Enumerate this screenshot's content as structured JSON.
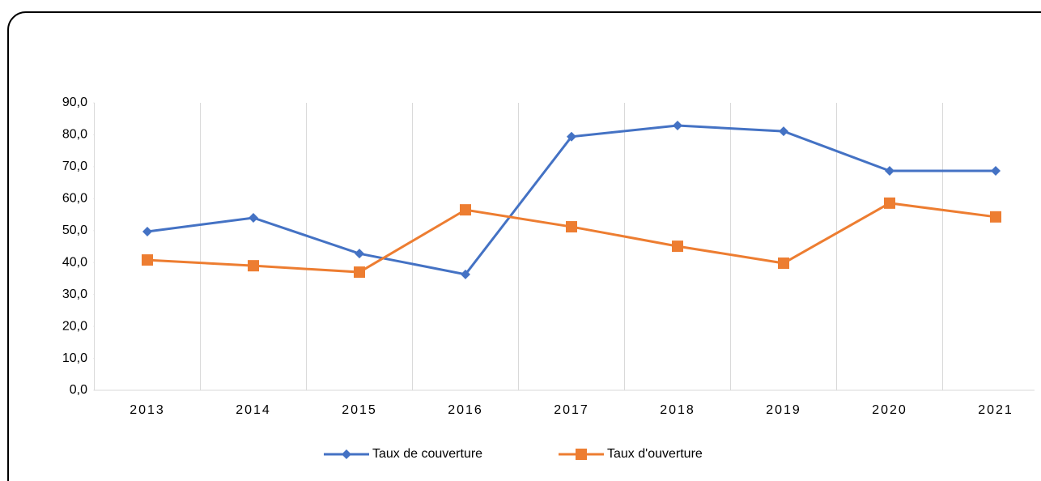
{
  "chart_data": {
    "type": "line",
    "categories": [
      "2013",
      "2014",
      "2015",
      "2016",
      "2017",
      "2018",
      "2019",
      "2020",
      "2021"
    ],
    "series": [
      {
        "name": "Taux de couverture",
        "color": "#4472c4",
        "marker": "diamond",
        "values": [
          49.7,
          54.0,
          42.8,
          36.3,
          79.4,
          82.9,
          81.1,
          68.7,
          68.7
        ]
      },
      {
        "name": "Taux d'ouverture",
        "color": "#ed7d31",
        "marker": "square",
        "values": [
          40.8,
          39.0,
          37.0,
          56.5,
          51.2,
          45.1,
          39.8,
          58.6,
          54.3
        ]
      }
    ],
    "ylim": [
      0,
      90
    ],
    "yticks": [
      {
        "value": 0,
        "label": "0,0"
      },
      {
        "value": 10,
        "label": "10,0"
      },
      {
        "value": 20,
        "label": "20,0"
      },
      {
        "value": 30,
        "label": "30,0"
      },
      {
        "value": 40,
        "label": "40,0"
      },
      {
        "value": 50,
        "label": "50,0"
      },
      {
        "value": 60,
        "label": "60,0"
      },
      {
        "value": 70,
        "label": "70,0"
      },
      {
        "value": 80,
        "label": "80,0"
      },
      {
        "value": 90,
        "label": "90,0"
      }
    ],
    "grid": "vertical",
    "legend": "bottom"
  }
}
